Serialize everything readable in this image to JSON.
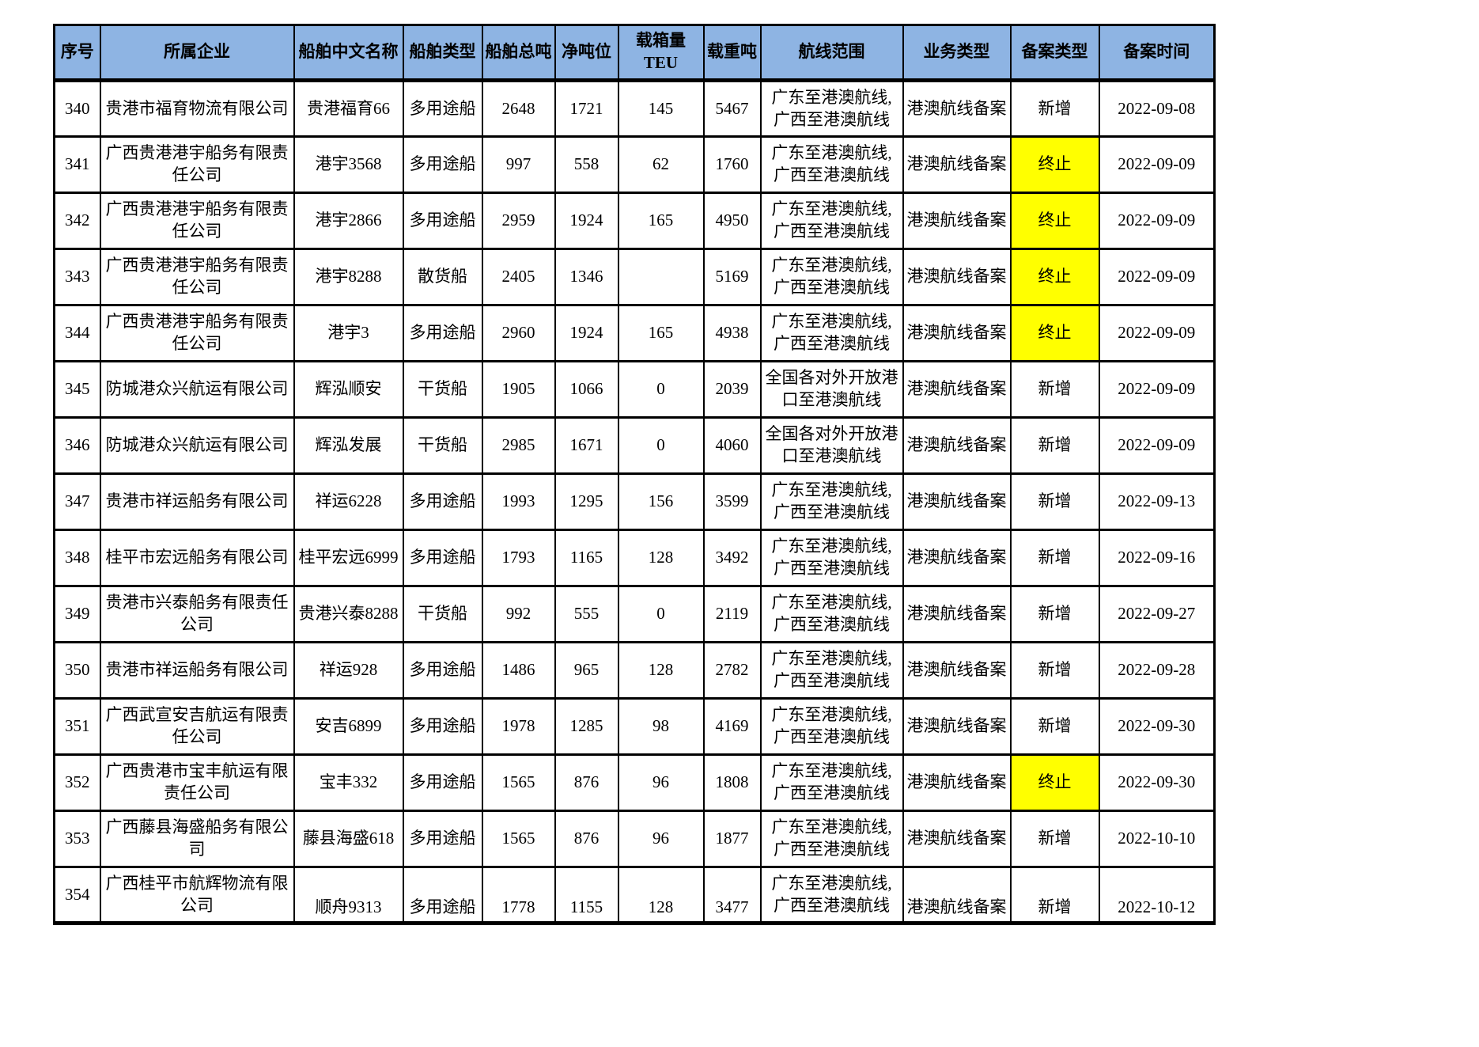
{
  "colors": {
    "header_bg": "#8EB4E3",
    "highlight": "#FFFF00"
  },
  "table": {
    "columns": [
      {
        "key": "index",
        "label": "序号"
      },
      {
        "key": "company",
        "label": "所属企业"
      },
      {
        "key": "ship_name",
        "label": "船舶中文名称"
      },
      {
        "key": "ship_type",
        "label": "船舶类型"
      },
      {
        "key": "gross_tonnage",
        "label": "船舶总吨"
      },
      {
        "key": "net_tonnage",
        "label": "净吨位"
      },
      {
        "key": "teu",
        "label": "载箱量TEU"
      },
      {
        "key": "deadweight",
        "label": "载重吨"
      },
      {
        "key": "route",
        "label": "航线范围"
      },
      {
        "key": "business_type",
        "label": "业务类型"
      },
      {
        "key": "filing_type",
        "label": "备案类型"
      },
      {
        "key": "filing_date",
        "label": "备案时间"
      }
    ],
    "rows": [
      {
        "index": "340",
        "company": "贵港市福育物流有限公司",
        "ship_name": "贵港福育66",
        "ship_type": "多用途船",
        "gross_tonnage": "2648",
        "net_tonnage": "1721",
        "teu": "145",
        "deadweight": "5467",
        "route": "广东至港澳航线,广西至港澳航线",
        "business_type": "港澳航线备案",
        "filing_type": "新增",
        "filing_highlight": false,
        "filing_date": "2022-09-08"
      },
      {
        "index": "341",
        "company": "广西贵港港宇船务有限责任公司",
        "ship_name": "港宇3568",
        "ship_type": "多用途船",
        "gross_tonnage": "997",
        "net_tonnage": "558",
        "teu": "62",
        "deadweight": "1760",
        "route": "广东至港澳航线,广西至港澳航线",
        "business_type": "港澳航线备案",
        "filing_type": "终止",
        "filing_highlight": true,
        "filing_date": "2022-09-09"
      },
      {
        "index": "342",
        "company": "广西贵港港宇船务有限责任公司",
        "ship_name": "港宇2866",
        "ship_type": "多用途船",
        "gross_tonnage": "2959",
        "net_tonnage": "1924",
        "teu": "165",
        "deadweight": "4950",
        "route": "广东至港澳航线,广西至港澳航线",
        "business_type": "港澳航线备案",
        "filing_type": "终止",
        "filing_highlight": true,
        "filing_date": "2022-09-09"
      },
      {
        "index": "343",
        "company": "广西贵港港宇船务有限责任公司",
        "ship_name": "港宇8288",
        "ship_type": "散货船",
        "gross_tonnage": "2405",
        "net_tonnage": "1346",
        "teu": "",
        "deadweight": "5169",
        "route": "广东至港澳航线,广西至港澳航线",
        "business_type": "港澳航线备案",
        "filing_type": "终止",
        "filing_highlight": true,
        "filing_date": "2022-09-09"
      },
      {
        "index": "344",
        "company": "广西贵港港宇船务有限责任公司",
        "ship_name": "港宇3",
        "ship_type": "多用途船",
        "gross_tonnage": "2960",
        "net_tonnage": "1924",
        "teu": "165",
        "deadweight": "4938",
        "route": "广东至港澳航线,广西至港澳航线",
        "business_type": "港澳航线备案",
        "filing_type": "终止",
        "filing_highlight": true,
        "filing_date": "2022-09-09"
      },
      {
        "index": "345",
        "company": "防城港众兴航运有限公司",
        "ship_name": "辉泓顺安",
        "ship_type": "干货船",
        "gross_tonnage": "1905",
        "net_tonnage": "1066",
        "teu": "0",
        "deadweight": "2039",
        "route": "全国各对外开放港口至港澳航线",
        "business_type": "港澳航线备案",
        "filing_type": "新增",
        "filing_highlight": false,
        "filing_date": "2022-09-09"
      },
      {
        "index": "346",
        "company": "防城港众兴航运有限公司",
        "ship_name": "辉泓发展",
        "ship_type": "干货船",
        "gross_tonnage": "2985",
        "net_tonnage": "1671",
        "teu": "0",
        "deadweight": "4060",
        "route": "全国各对外开放港口至港澳航线",
        "business_type": "港澳航线备案",
        "filing_type": "新增",
        "filing_highlight": false,
        "filing_date": "2022-09-09"
      },
      {
        "index": "347",
        "company": "贵港市祥运船务有限公司",
        "ship_name": "祥运6228",
        "ship_type": "多用途船",
        "gross_tonnage": "1993",
        "net_tonnage": "1295",
        "teu": "156",
        "deadweight": "3599",
        "route": "广东至港澳航线,广西至港澳航线",
        "business_type": "港澳航线备案",
        "filing_type": "新增",
        "filing_highlight": false,
        "filing_date": "2022-09-13"
      },
      {
        "index": "348",
        "company": "桂平市宏远船务有限公司",
        "ship_name": "桂平宏远6999",
        "ship_type": "多用途船",
        "gross_tonnage": "1793",
        "net_tonnage": "1165",
        "teu": "128",
        "deadweight": "3492",
        "route": "广东至港澳航线,广西至港澳航线",
        "business_type": "港澳航线备案",
        "filing_type": "新增",
        "filing_highlight": false,
        "filing_date": "2022-09-16"
      },
      {
        "index": "349",
        "company": "贵港市兴泰船务有限责任公司",
        "ship_name": "贵港兴泰8288",
        "ship_type": "干货船",
        "gross_tonnage": "992",
        "net_tonnage": "555",
        "teu": "0",
        "deadweight": "2119",
        "route": "广东至港澳航线,广西至港澳航线",
        "business_type": "港澳航线备案",
        "filing_type": "新增",
        "filing_highlight": false,
        "filing_date": "2022-09-27"
      },
      {
        "index": "350",
        "company": "贵港市祥运船务有限公司",
        "ship_name": "祥运928",
        "ship_type": "多用途船",
        "gross_tonnage": "1486",
        "net_tonnage": "965",
        "teu": "128",
        "deadweight": "2782",
        "route": "广东至港澳航线,广西至港澳航线",
        "business_type": "港澳航线备案",
        "filing_type": "新增",
        "filing_highlight": false,
        "filing_date": "2022-09-28"
      },
      {
        "index": "351",
        "company": "广西武宣安吉航运有限责任公司",
        "ship_name": "安吉6899",
        "ship_type": "多用途船",
        "gross_tonnage": "1978",
        "net_tonnage": "1285",
        "teu": "98",
        "deadweight": "4169",
        "route": "广东至港澳航线,广西至港澳航线",
        "business_type": "港澳航线备案",
        "filing_type": "新增",
        "filing_highlight": false,
        "filing_date": "2022-09-30"
      },
      {
        "index": "352",
        "company": "广西贵港市宝丰航运有限责任公司",
        "ship_name": "宝丰332",
        "ship_type": "多用途船",
        "gross_tonnage": "1565",
        "net_tonnage": "876",
        "teu": "96",
        "deadweight": "1808",
        "route": "广东至港澳航线,广西至港澳航线",
        "business_type": "港澳航线备案",
        "filing_type": "终止",
        "filing_highlight": true,
        "filing_date": "2022-09-30"
      },
      {
        "index": "353",
        "company": "广西藤县海盛船务有限公司",
        "ship_name": "藤县海盛618",
        "ship_type": "多用途船",
        "gross_tonnage": "1565",
        "net_tonnage": "876",
        "teu": "96",
        "deadweight": "1877",
        "route": "广东至港澳航线,广西至港澳航线",
        "business_type": "港澳航线备案",
        "filing_type": "新增",
        "filing_highlight": false,
        "filing_date": "2022-10-10"
      },
      {
        "index": "354",
        "company": "广西桂平市航辉物流有限公司",
        "ship_name": "顺舟9313",
        "ship_type": "多用途船",
        "gross_tonnage": "1778",
        "net_tonnage": "1155",
        "teu": "128",
        "deadweight": "3477",
        "route": "广东至港澳航线,广西至港澳航线",
        "business_type": "港澳航线备案",
        "filing_type": "新增",
        "filing_highlight": false,
        "filing_date": "2022-10-12"
      }
    ]
  }
}
